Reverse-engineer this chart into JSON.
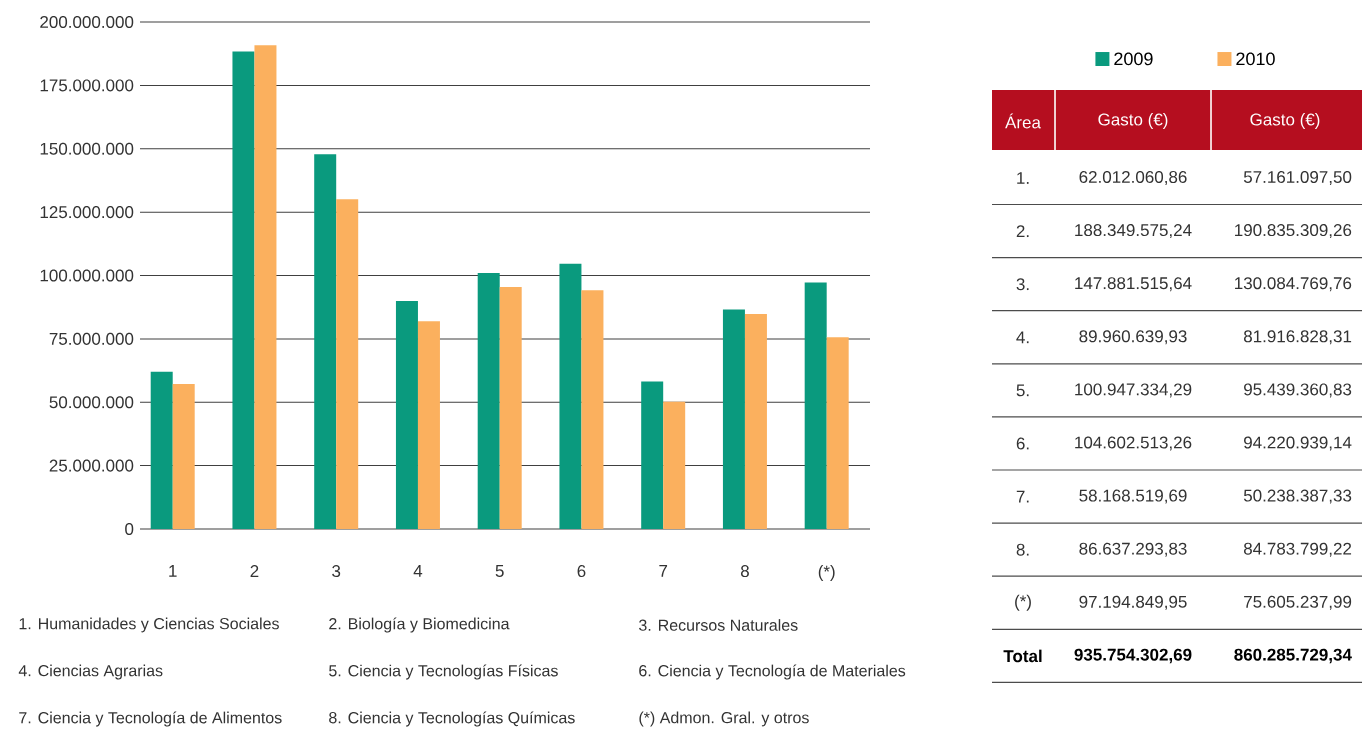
{
  "chart_data": {
    "type": "bar",
    "categories": [
      "1",
      "2",
      "3",
      "4",
      "5",
      "6",
      "7",
      "8",
      "(*)"
    ],
    "series": [
      {
        "name": "2009",
        "color": "#0a9a7e",
        "values": [
          62012060.86,
          188349575.24,
          147881515.64,
          89960639.93,
          100947334.29,
          104602513.26,
          58168519.69,
          86637293.83,
          97194849.95
        ]
      },
      {
        "name": "2010",
        "color": "#fbb05e",
        "values": [
          57161097.5,
          190835309.26,
          130084769.76,
          81916828.31,
          95439360.83,
          94220939.14,
          50238387.33,
          84783799.22,
          75605237.99
        ]
      }
    ],
    "ylim": [
      0,
      200000000
    ],
    "yticks": [
      {
        "value": 0,
        "label": "0"
      },
      {
        "value": 25000000,
        "label": "25.000.000"
      },
      {
        "value": 50000000,
        "label": "50.000.000"
      },
      {
        "value": 75000000,
        "label": "75.000.000"
      },
      {
        "value": 100000000,
        "label": "100.000.000"
      },
      {
        "value": 125000000,
        "label": "125.000.000"
      },
      {
        "value": 150000000,
        "label": "150.000.000"
      },
      {
        "value": 175000000,
        "label": "175.000.000"
      },
      {
        "value": 200000000,
        "label": "200.000.000"
      }
    ],
    "grid": "y",
    "legend": "top right",
    "annotations": [
      "1. Humanidades y Ciencias Sociales",
      "2. Biología y Biomedicina",
      "3. Recursos Naturales",
      "4. Ciencias Agrarias",
      "5. Ciencia y Tecnologías Físicas",
      "6. Ciencia y Tecnología de Materiales",
      "7. Ciencia y Tecnología de Alimentos",
      "8. Ciencia y Tecnologías Químicas",
      "(*) Admon. Gral. y otros",
      "Área",
      "Gasto (€)",
      "Gasto (€)",
      "1.",
      "2.",
      "3.",
      "4.",
      "5.",
      "6.",
      "7.",
      "8.",
      "(*)",
      "Total",
      "935.754.302,69",
      "860.285.729,34",
      "62.012.060,86",
      "57.161.097,50",
      "188.349.575,24",
      "190.835.309,26",
      "147.881.515,64",
      "130.084.769,76",
      "89.960.639,93",
      "81.916.828,31",
      "100.947.334,29",
      "95.439.360,83",
      "104.602.513,26",
      "94.220.939,14",
      "58.168.519,69",
      "50.238.387,33",
      "86.637.293,83",
      "84.783.799,22",
      "97.194.849,95",
      "75.605.237,99"
    ]
  }
}
